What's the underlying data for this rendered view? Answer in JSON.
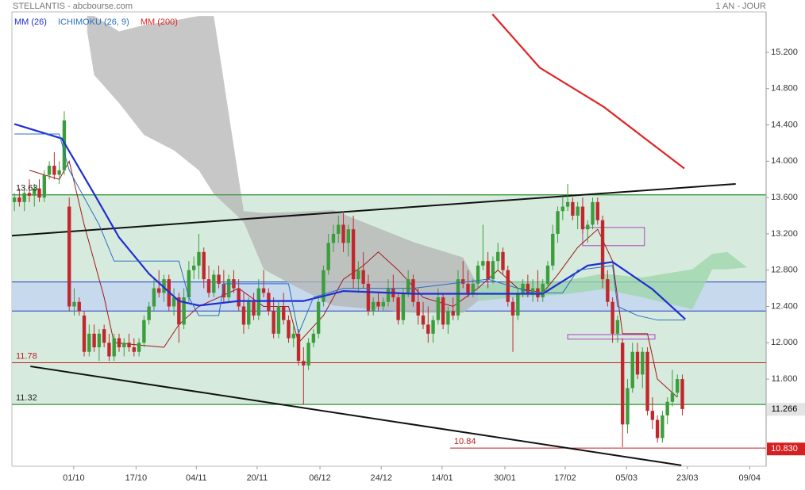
{
  "chart_data": {
    "type": "candlestick",
    "title": "STELLANTIS - abcbourse.com",
    "period": "1 AN - JOUR",
    "xlim": [
      -0.5,
      150.8
    ],
    "ylim": [
      10.64,
      15.645
    ],
    "xticks": [
      {
        "value": 11.9,
        "label": "01/10"
      },
      {
        "value": 24.4,
        "label": "17/10"
      },
      {
        "value": 36.5,
        "label": "04/11"
      },
      {
        "value": 48.7,
        "label": "20/11"
      },
      {
        "value": 61.3,
        "label": "06/12"
      },
      {
        "value": 73.6,
        "label": "24/12"
      },
      {
        "value": 85.8,
        "label": "14/01"
      },
      {
        "value": 98.4,
        "label": "30/01"
      },
      {
        "value": 110.5,
        "label": "17/02"
      },
      {
        "value": 122.8,
        "label": "05/03"
      },
      {
        "value": 135,
        "label": "23/03"
      },
      {
        "value": 147.5,
        "label": "09/04"
      }
    ],
    "yticks": [
      {
        "value": 11.6,
        "label": "11.600"
      },
      {
        "value": 12,
        "label": "12.000"
      },
      {
        "value": 12.4,
        "label": "12.400"
      },
      {
        "value": 12.8,
        "label": "12.800"
      },
      {
        "value": 13.2,
        "label": "13.200"
      },
      {
        "value": 13.6,
        "label": "13.600"
      },
      {
        "value": 14,
        "label": "14.000"
      },
      {
        "value": 14.4,
        "label": "14.400"
      },
      {
        "value": 14.8,
        "label": "14.800"
      },
      {
        "value": 15.2,
        "label": "15.200"
      }
    ],
    "up_color": "#3c9d3c",
    "down_color": "#c0282d",
    "candles": [
      [
        13.55,
        13.65,
        13.45,
        13.6
      ],
      [
        13.6,
        13.7,
        13.5,
        13.55
      ],
      [
        13.55,
        13.7,
        13.45,
        13.65
      ],
      [
        13.65,
        13.8,
        13.55,
        13.62
      ],
      [
        13.62,
        13.75,
        13.5,
        13.7
      ],
      [
        13.7,
        13.8,
        13.55,
        13.6
      ],
      [
        13.6,
        13.9,
        13.55,
        13.85
      ],
      [
        13.85,
        14.0,
        13.8,
        13.95
      ],
      [
        13.95,
        14.1,
        13.8,
        13.85
      ],
      [
        13.85,
        14.0,
        13.75,
        13.9
      ],
      [
        13.9,
        14.55,
        13.85,
        14.45
      ],
      [
        13.5,
        13.6,
        12.35,
        12.4
      ],
      [
        12.4,
        12.6,
        12.3,
        12.45
      ],
      [
        12.45,
        12.5,
        12.3,
        12.35
      ],
      [
        12.3,
        12.35,
        11.85,
        11.9
      ],
      [
        11.9,
        12.2,
        11.85,
        12.1
      ],
      [
        12.1,
        12.2,
        11.9,
        11.95
      ],
      [
        11.95,
        12.15,
        11.8,
        12.1
      ],
      [
        12.15,
        12.2,
        11.95,
        12.0
      ],
      [
        12.0,
        12.1,
        11.8,
        11.85
      ],
      [
        11.85,
        12.1,
        11.8,
        12.05
      ],
      [
        12.05,
        12.1,
        11.9,
        11.95
      ],
      [
        11.95,
        12.05,
        11.85,
        12.0
      ],
      [
        12.0,
        12.1,
        11.9,
        11.95
      ],
      [
        11.95,
        12.05,
        11.85,
        11.9
      ],
      [
        11.9,
        12.05,
        11.85,
        12.0
      ],
      [
        12.0,
        12.3,
        11.95,
        12.25
      ],
      [
        12.25,
        12.45,
        12.2,
        12.4
      ],
      [
        12.4,
        12.7,
        12.35,
        12.6
      ],
      [
        12.6,
        12.8,
        12.5,
        12.55
      ],
      [
        12.55,
        12.75,
        12.45,
        12.7
      ],
      [
        12.7,
        12.75,
        12.35,
        12.4
      ],
      [
        12.4,
        12.6,
        12.3,
        12.5
      ],
      [
        12.5,
        12.55,
        12.0,
        12.2
      ],
      [
        12.2,
        12.6,
        12.15,
        12.5
      ],
      [
        12.5,
        12.9,
        12.45,
        12.8
      ],
      [
        12.8,
        12.95,
        12.7,
        12.85
      ],
      [
        12.85,
        13.2,
        12.7,
        13.0
      ],
      [
        13.0,
        13.05,
        12.6,
        12.7
      ],
      [
        12.7,
        12.85,
        12.5,
        12.55
      ],
      [
        12.55,
        12.8,
        12.5,
        12.75
      ],
      [
        12.75,
        12.85,
        12.6,
        12.65
      ],
      [
        12.65,
        12.8,
        12.45,
        12.5
      ],
      [
        12.5,
        12.75,
        12.45,
        12.7
      ],
      [
        12.7,
        12.8,
        12.55,
        12.6
      ],
      [
        12.6,
        12.7,
        12.35,
        12.4
      ],
      [
        12.4,
        12.55,
        12.1,
        12.2
      ],
      [
        12.2,
        12.5,
        12.15,
        12.45
      ],
      [
        12.45,
        12.55,
        12.25,
        12.3
      ],
      [
        12.3,
        12.7,
        12.25,
        12.6
      ],
      [
        12.6,
        12.8,
        12.5,
        12.55
      ],
      [
        12.55,
        12.6,
        12.3,
        12.35
      ],
      [
        12.35,
        12.5,
        12.05,
        12.1
      ],
      [
        12.1,
        12.45,
        12.05,
        12.4
      ],
      [
        12.4,
        12.55,
        12.2,
        12.25
      ],
      [
        12.25,
        12.3,
        12.0,
        12.05
      ],
      [
        12.05,
        12.2,
        11.95,
        12.1
      ],
      [
        12.1,
        12.15,
        11.75,
        11.8
      ],
      [
        11.8,
        11.95,
        11.32,
        11.75
      ],
      [
        11.75,
        12.05,
        11.7,
        12.0
      ],
      [
        12.0,
        12.15,
        11.95,
        12.1
      ],
      [
        12.1,
        12.5,
        12.05,
        12.45
      ],
      [
        12.45,
        12.85,
        12.4,
        12.8
      ],
      [
        12.8,
        13.2,
        12.75,
        13.1
      ],
      [
        13.1,
        13.3,
        13.0,
        13.2
      ],
      [
        13.2,
        13.4,
        13.1,
        13.3
      ],
      [
        13.3,
        13.45,
        13.0,
        13.1
      ],
      [
        13.1,
        13.3,
        12.95,
        13.25
      ],
      [
        13.25,
        13.4,
        12.6,
        12.7
      ],
      [
        12.7,
        12.9,
        12.55,
        12.8
      ],
      [
        12.8,
        13.0,
        12.6,
        12.65
      ],
      [
        12.65,
        12.75,
        12.3,
        12.35
      ],
      [
        12.35,
        12.5,
        12.3,
        12.45
      ],
      [
        12.45,
        12.55,
        12.35,
        12.4
      ],
      [
        12.4,
        12.5,
        12.35,
        12.45
      ],
      [
        12.45,
        12.7,
        12.4,
        12.6
      ],
      [
        12.6,
        12.75,
        12.45,
        12.5
      ],
      [
        12.5,
        12.55,
        12.2,
        12.25
      ],
      [
        12.25,
        12.6,
        12.2,
        12.55
      ],
      [
        12.55,
        12.8,
        12.5,
        12.7
      ],
      [
        12.7,
        12.75,
        12.4,
        12.45
      ],
      [
        12.45,
        12.6,
        12.2,
        12.3
      ],
      [
        12.3,
        12.45,
        12.15,
        12.2
      ],
      [
        12.2,
        12.4,
        12.0,
        12.1
      ],
      [
        12.1,
        12.3,
        12.0,
        12.25
      ],
      [
        12.25,
        12.6,
        12.2,
        12.5
      ],
      [
        12.5,
        12.55,
        12.15,
        12.2
      ],
      [
        12.2,
        12.4,
        12.1,
        12.35
      ],
      [
        12.35,
        12.5,
        12.25,
        12.3
      ],
      [
        12.3,
        12.8,
        12.25,
        12.7
      ],
      [
        12.7,
        12.9,
        12.6,
        12.65
      ],
      [
        12.65,
        12.8,
        12.5,
        12.55
      ],
      [
        12.55,
        12.7,
        12.5,
        12.65
      ],
      [
        12.65,
        12.9,
        12.6,
        12.85
      ],
      [
        12.85,
        13.3,
        12.8,
        12.9
      ],
      [
        12.9,
        13.0,
        12.6,
        12.7
      ],
      [
        12.7,
        12.95,
        12.65,
        12.9
      ],
      [
        12.9,
        13.1,
        12.8,
        13.0
      ],
      [
        13.0,
        13.05,
        12.75,
        12.8
      ],
      [
        12.8,
        12.85,
        12.4,
        12.45
      ],
      [
        12.45,
        12.5,
        11.9,
        12.3
      ],
      [
        12.3,
        12.6,
        12.25,
        12.55
      ],
      [
        12.55,
        12.7,
        12.5,
        12.65
      ],
      [
        12.65,
        12.75,
        12.5,
        12.55
      ],
      [
        12.55,
        12.7,
        12.45,
        12.6
      ],
      [
        12.6,
        12.8,
        12.45,
        12.5
      ],
      [
        12.5,
        12.7,
        12.45,
        12.65
      ],
      [
        12.65,
        12.9,
        12.6,
        12.85
      ],
      [
        12.85,
        13.3,
        12.8,
        13.2
      ],
      [
        13.2,
        13.5,
        13.1,
        13.45
      ],
      [
        13.45,
        13.6,
        13.35,
        13.5
      ],
      [
        13.5,
        13.75,
        13.45,
        13.55
      ],
      [
        13.55,
        13.6,
        13.35,
        13.4
      ],
      [
        13.4,
        13.55,
        13.25,
        13.5
      ],
      [
        13.5,
        13.6,
        13.2,
        13.25
      ],
      [
        13.25,
        13.35,
        13.1,
        13.3
      ],
      [
        13.3,
        13.6,
        13.25,
        13.55
      ],
      [
        13.55,
        13.6,
        13.3,
        13.35
      ],
      [
        13.35,
        13.4,
        12.6,
        12.7
      ],
      [
        12.7,
        12.8,
        12.4,
        12.45
      ],
      [
        12.45,
        12.5,
        12.0,
        12.1
      ],
      [
        12.1,
        12.3,
        12.0,
        12.25
      ],
      [
        12.0,
        12.05,
        10.85,
        11.1
      ],
      [
        11.1,
        11.6,
        11.0,
        11.5
      ],
      [
        11.5,
        12.0,
        11.45,
        11.9
      ],
      [
        11.9,
        12.0,
        11.6,
        11.65
      ],
      [
        11.65,
        11.95,
        11.5,
        11.9
      ],
      [
        11.9,
        11.95,
        11.2,
        11.25
      ],
      [
        11.25,
        11.4,
        11.05,
        11.15
      ],
      [
        11.15,
        11.2,
        10.9,
        10.95
      ],
      [
        10.95,
        11.25,
        10.9,
        11.2
      ],
      [
        11.2,
        11.4,
        11.1,
        11.35
      ],
      [
        11.35,
        11.7,
        11.3,
        11.45
      ],
      [
        11.45,
        11.65,
        11.4,
        11.6
      ],
      [
        11.6,
        11.65,
        11.2,
        11.27
      ]
    ],
    "series": [
      {
        "name": "MM (26)",
        "color": "#1f2fd0",
        "width": 2.2,
        "x": [
          0,
          9.5,
          16,
          21,
          27,
          33,
          37,
          45,
          58,
          66,
          80,
          95,
          106,
          115,
          120,
          128,
          134.6
        ],
        "values": [
          14.41,
          14.25,
          13.64,
          13.16,
          12.76,
          12.46,
          12.41,
          12.46,
          12.46,
          12.57,
          12.54,
          12.54,
          12.54,
          12.85,
          12.89,
          12.59,
          12.26
        ]
      },
      {
        "name": "ICHIMOKU (26, 9)",
        "color": "#2a6fc0",
        "width": 1,
        "x": [
          0,
          9,
          11,
          14,
          17,
          20,
          33,
          35,
          37,
          41,
          42,
          55,
          57,
          60,
          66,
          80,
          95,
          104,
          110,
          113,
          120,
          121,
          125,
          129,
          134.5
        ],
        "values": [
          14.3,
          14.3,
          13.9,
          13.6,
          13.3,
          12.9,
          12.9,
          12.5,
          12.3,
          12.3,
          12.65,
          12.65,
          12.1,
          12.5,
          12.6,
          12.6,
          12.7,
          12.55,
          12.55,
          12.8,
          12.85,
          12.4,
          12.3,
          12.25,
          12.25
        ]
      },
      {
        "name": "MM (200)",
        "color": "#e02424",
        "width": 2.2,
        "x": [
          95.9,
          105.4,
          118.2,
          127.7,
          134.4
        ],
        "values": [
          15.62,
          15.03,
          14.6,
          14.2,
          13.92
        ]
      }
    ],
    "tenkan": {
      "color": "#a01818",
      "x": [
        3,
        9,
        11,
        14,
        18,
        20,
        30,
        33,
        37,
        45,
        50,
        55,
        57,
        62,
        66,
        70,
        73,
        77,
        82,
        88,
        93,
        97,
        101,
        106,
        109,
        113,
        117,
        120,
        122,
        127,
        129,
        133
      ],
      "values": [
        13.9,
        13.8,
        14.0,
        13.3,
        12.5,
        12.0,
        11.95,
        12.2,
        12.4,
        12.6,
        12.4,
        12.4,
        12.0,
        12.3,
        12.7,
        12.85,
        13.0,
        12.8,
        12.5,
        12.4,
        12.6,
        12.8,
        12.6,
        12.55,
        12.75,
        13.05,
        13.25,
        12.9,
        12.1,
        12.1,
        11.6,
        11.4
      ]
    },
    "clouds": [
      {
        "color": "#b4b4b4",
        "x": [
          14.6,
          16,
          21,
          26,
          32,
          37,
          40,
          46,
          50,
          56,
          64,
          80,
          90,
          93
        ],
        "upper": [
          15.6,
          15.6,
          15.43,
          15.5,
          15.55,
          15.6,
          15.6,
          13.45,
          13.43,
          13.44,
          13.46,
          13.11,
          12.94,
          12.63
        ],
        "lower": [
          15.43,
          14.95,
          14.64,
          14.29,
          14.12,
          13.9,
          13.64,
          13.33,
          12.81,
          12.63,
          12.41,
          12.33,
          12.33,
          12.46
        ]
      },
      {
        "color": "#9cd6a8",
        "x": [
          93,
          100,
          110,
          118,
          126,
          136,
          140,
          143,
          147
        ],
        "upper": [
          12.63,
          12.68,
          12.68,
          12.76,
          12.72,
          12.81,
          12.98,
          13.0,
          12.83
        ],
        "lower": [
          12.46,
          12.5,
          12.53,
          12.59,
          12.5,
          12.37,
          12.81,
          12.81,
          12.83
        ]
      }
    ],
    "trendlines": [
      {
        "x": [
          -0.5,
          144.7
        ],
        "values": [
          13.18,
          13.75
        ]
      },
      {
        "x": [
          3.2,
          133.8
        ],
        "values": [
          11.74,
          10.65
        ]
      }
    ],
    "bands": [
      {
        "y": [
          11.32,
          13.63
        ],
        "color": "#cfe8d8",
        "edge": "#3a9a3a"
      },
      {
        "y": [
          12.35,
          12.67
        ],
        "color": "#c4d6ee",
        "edge": "#2040c0"
      }
    ],
    "boxes": [
      {
        "x": [
          114,
          126.4
        ],
        "y": [
          13.07,
          13.27
        ]
      },
      {
        "x": [
          111,
          128.5
        ],
        "y": [
          12.04,
          12.09
        ]
      }
    ],
    "levels": [
      {
        "value": 13.63,
        "color": "#2a8a2a",
        "label_color": "#222"
      },
      {
        "value": 11.78,
        "color": "#c02020",
        "label_color": "#c02020"
      },
      {
        "value": 11.32,
        "color": "#2a8a2a",
        "label_color": "#222"
      },
      {
        "value": 10.84,
        "color": "#c02020",
        "label_color": "#c02020",
        "x0": 87.4
      }
    ],
    "price_tags": [
      {
        "value": 11.266,
        "bg": "#e4e4e4",
        "fg": "#000"
      },
      {
        "value": 10.83,
        "label": "10.830",
        "bg": "#d42020",
        "fg": "#fff"
      }
    ]
  }
}
